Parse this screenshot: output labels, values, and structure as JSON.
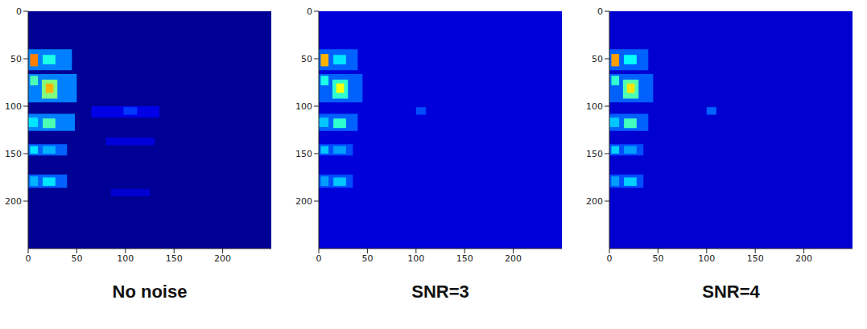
{
  "chart_data": [
    {
      "type": "heatmap",
      "title": "No noise",
      "color": "jet",
      "xlim": [
        0,
        250
      ],
      "ylim": [
        250,
        0
      ],
      "xticks": [
        0,
        50,
        100,
        150,
        200
      ],
      "yticks": [
        0,
        50,
        100,
        150,
        200
      ],
      "zlim": [
        0,
        1
      ],
      "cells": [
        {
          "x": [
            0,
            250
          ],
          "y": [
            0,
            250
          ],
          "v": 0.02
        },
        {
          "x": [
            65,
            135
          ],
          "y": [
            100,
            112
          ],
          "v": 0.1
        },
        {
          "x": [
            98,
            112
          ],
          "y": [
            101,
            109
          ],
          "v": 0.18
        },
        {
          "x": [
            80,
            130
          ],
          "y": [
            133,
            141
          ],
          "v": 0.09
        },
        {
          "x": [
            85,
            125
          ],
          "y": [
            187,
            195
          ],
          "v": 0.08
        },
        {
          "x": [
            0,
            45
          ],
          "y": [
            40,
            62
          ],
          "v": 0.25
        },
        {
          "x": [
            15,
            28
          ],
          "y": [
            46,
            56
          ],
          "v": 0.4
        },
        {
          "x": [
            2,
            10
          ],
          "y": [
            45,
            58
          ],
          "v": 0.75
        },
        {
          "x": [
            0,
            50
          ],
          "y": [
            66,
            96
          ],
          "v": 0.25
        },
        {
          "x": [
            2,
            10
          ],
          "y": [
            68,
            78
          ],
          "v": 0.45
        },
        {
          "x": [
            14,
            30
          ],
          "y": [
            72,
            92
          ],
          "v": 0.5
        },
        {
          "x": [
            18,
            26
          ],
          "y": [
            76,
            86
          ],
          "v": 0.7
        },
        {
          "x": [
            0,
            48
          ],
          "y": [
            108,
            126
          ],
          "v": 0.25
        },
        {
          "x": [
            0,
            10
          ],
          "y": [
            112,
            122
          ],
          "v": 0.35
        },
        {
          "x": [
            15,
            28
          ],
          "y": [
            113,
            123
          ],
          "v": 0.45
        },
        {
          "x": [
            0,
            40
          ],
          "y": [
            140,
            152
          ],
          "v": 0.22
        },
        {
          "x": [
            2,
            10
          ],
          "y": [
            142,
            150
          ],
          "v": 0.35
        },
        {
          "x": [
            15,
            28
          ],
          "y": [
            142,
            150
          ],
          "v": 0.3
        },
        {
          "x": [
            0,
            40
          ],
          "y": [
            172,
            186
          ],
          "v": 0.22
        },
        {
          "x": [
            2,
            10
          ],
          "y": [
            174,
            184
          ],
          "v": 0.3
        },
        {
          "x": [
            15,
            28
          ],
          "y": [
            175,
            184
          ],
          "v": 0.35
        }
      ]
    },
    {
      "type": "heatmap",
      "title": "SNR=3",
      "color": "jet",
      "xlim": [
        0,
        250
      ],
      "ylim": [
        250,
        0
      ],
      "xticks": [
        0,
        50,
        100,
        150,
        200
      ],
      "yticks": [
        0,
        50,
        100,
        150,
        200
      ],
      "zlim": [
        0,
        1
      ],
      "cells": [
        {
          "x": [
            0,
            250
          ],
          "y": [
            0,
            250
          ],
          "v": 0.09
        },
        {
          "x": [
            100,
            110
          ],
          "y": [
            101,
            109
          ],
          "v": 0.2
        },
        {
          "x": [
            0,
            40
          ],
          "y": [
            40,
            62
          ],
          "v": 0.22
        },
        {
          "x": [
            15,
            28
          ],
          "y": [
            46,
            56
          ],
          "v": 0.35
        },
        {
          "x": [
            2,
            10
          ],
          "y": [
            45,
            58
          ],
          "v": 0.7
        },
        {
          "x": [
            0,
            45
          ],
          "y": [
            66,
            96
          ],
          "v": 0.22
        },
        {
          "x": [
            2,
            10
          ],
          "y": [
            68,
            78
          ],
          "v": 0.4
        },
        {
          "x": [
            14,
            30
          ],
          "y": [
            72,
            92
          ],
          "v": 0.42
        },
        {
          "x": [
            18,
            26
          ],
          "y": [
            76,
            86
          ],
          "v": 0.62
        },
        {
          "x": [
            0,
            40
          ],
          "y": [
            108,
            126
          ],
          "v": 0.22
        },
        {
          "x": [
            0,
            10
          ],
          "y": [
            112,
            122
          ],
          "v": 0.32
        },
        {
          "x": [
            15,
            28
          ],
          "y": [
            113,
            123
          ],
          "v": 0.42
        },
        {
          "x": [
            0,
            35
          ],
          "y": [
            140,
            152
          ],
          "v": 0.2
        },
        {
          "x": [
            2,
            10
          ],
          "y": [
            142,
            150
          ],
          "v": 0.32
        },
        {
          "x": [
            15,
            28
          ],
          "y": [
            142,
            150
          ],
          "v": 0.28
        },
        {
          "x": [
            0,
            35
          ],
          "y": [
            172,
            186
          ],
          "v": 0.2
        },
        {
          "x": [
            2,
            10
          ],
          "y": [
            174,
            184
          ],
          "v": 0.28
        },
        {
          "x": [
            15,
            28
          ],
          "y": [
            175,
            184
          ],
          "v": 0.32
        }
      ]
    },
    {
      "type": "heatmap",
      "title": "SNR=4",
      "color": "jet",
      "xlim": [
        0,
        250
      ],
      "ylim": [
        250,
        0
      ],
      "xticks": [
        0,
        50,
        100,
        150,
        200
      ],
      "yticks": [
        0,
        50,
        100,
        150,
        200
      ],
      "zlim": [
        0,
        1
      ],
      "cells": [
        {
          "x": [
            0,
            250
          ],
          "y": [
            0,
            250
          ],
          "v": 0.08
        },
        {
          "x": [
            100,
            110
          ],
          "y": [
            101,
            109
          ],
          "v": 0.22
        },
        {
          "x": [
            0,
            40
          ],
          "y": [
            40,
            62
          ],
          "v": 0.22
        },
        {
          "x": [
            15,
            28
          ],
          "y": [
            46,
            56
          ],
          "v": 0.38
        },
        {
          "x": [
            2,
            10
          ],
          "y": [
            45,
            58
          ],
          "v": 0.72
        },
        {
          "x": [
            0,
            45
          ],
          "y": [
            66,
            96
          ],
          "v": 0.22
        },
        {
          "x": [
            2,
            10
          ],
          "y": [
            68,
            78
          ],
          "v": 0.42
        },
        {
          "x": [
            14,
            30
          ],
          "y": [
            72,
            92
          ],
          "v": 0.45
        },
        {
          "x": [
            18,
            26
          ],
          "y": [
            76,
            86
          ],
          "v": 0.65
        },
        {
          "x": [
            0,
            40
          ],
          "y": [
            108,
            126
          ],
          "v": 0.22
        },
        {
          "x": [
            0,
            10
          ],
          "y": [
            112,
            122
          ],
          "v": 0.32
        },
        {
          "x": [
            15,
            28
          ],
          "y": [
            113,
            123
          ],
          "v": 0.44
        },
        {
          "x": [
            0,
            35
          ],
          "y": [
            140,
            152
          ],
          "v": 0.2
        },
        {
          "x": [
            2,
            10
          ],
          "y": [
            142,
            150
          ],
          "v": 0.33
        },
        {
          "x": [
            15,
            28
          ],
          "y": [
            142,
            150
          ],
          "v": 0.28
        },
        {
          "x": [
            0,
            35
          ],
          "y": [
            172,
            186
          ],
          "v": 0.2
        },
        {
          "x": [
            2,
            10
          ],
          "y": [
            174,
            184
          ],
          "v": 0.28
        },
        {
          "x": [
            15,
            28
          ],
          "y": [
            175,
            184
          ],
          "v": 0.33
        }
      ]
    }
  ]
}
